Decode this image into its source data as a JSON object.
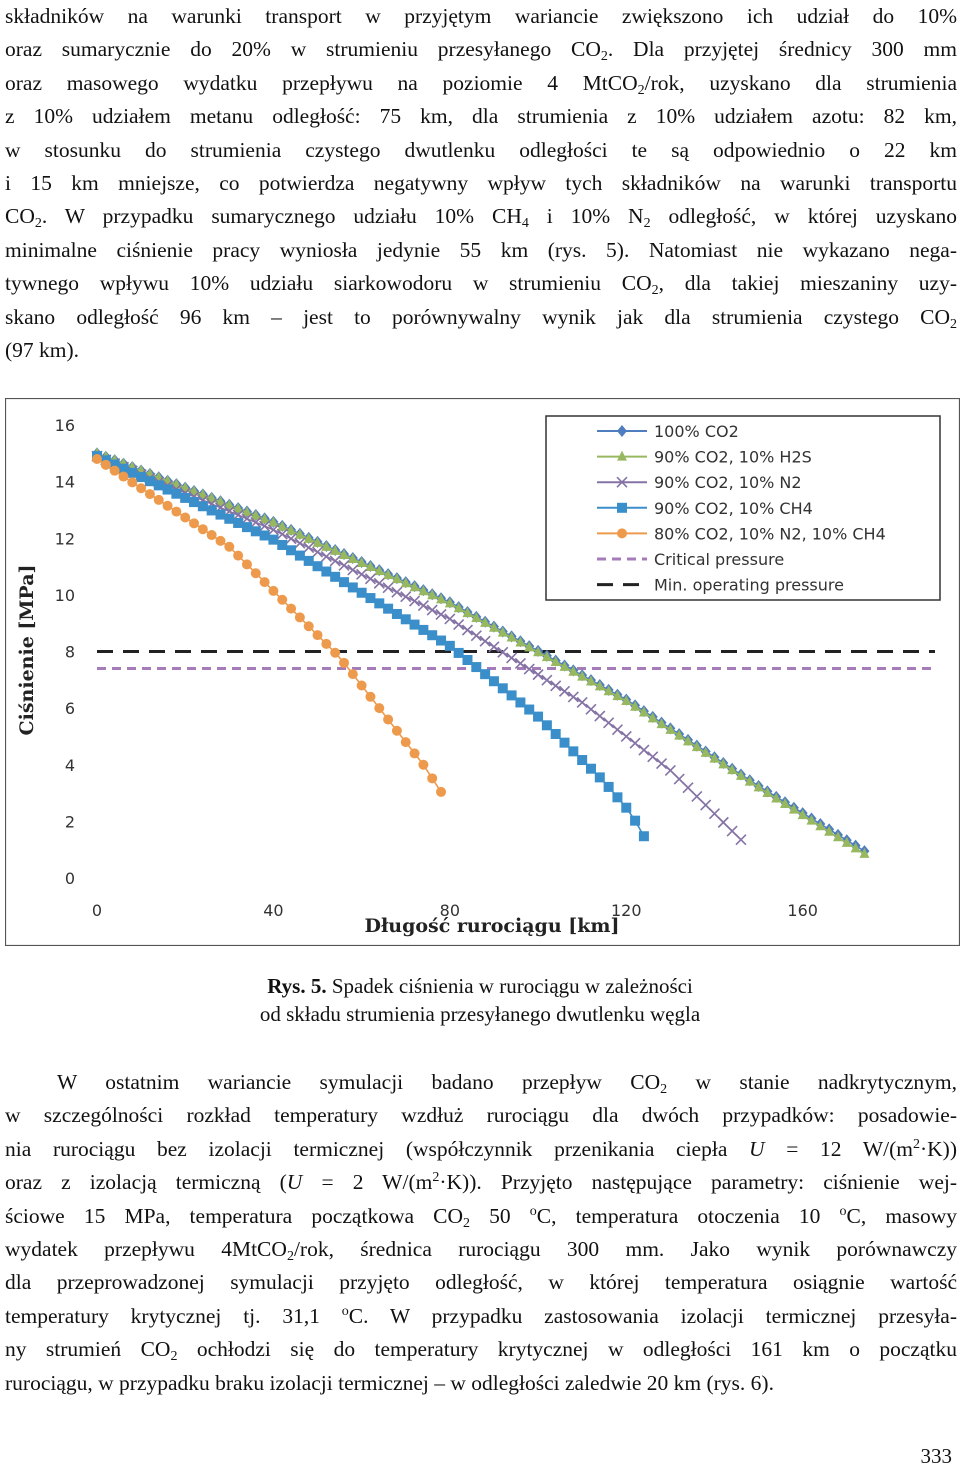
{
  "paragraph1": {
    "lines": [
      {
        "parts": [
          {
            "t": "składników na warunki transport w przyjętym wariancie zwiększono ich udział do 10%"
          }
        ]
      },
      {
        "parts": [
          {
            "t": "oraz sumarycznie do 20% w strumieniu przesyłanego CO"
          },
          {
            "sub": "2"
          },
          {
            "t": ". Dla przyjętej średnicy 300 mm"
          }
        ]
      },
      {
        "parts": [
          {
            "t": "oraz masowego wydatku przepływu na poziomie 4 MtCO"
          },
          {
            "sub": "2"
          },
          {
            "t": "/rok, uzyskano dla strumienia"
          }
        ]
      },
      {
        "parts": [
          {
            "t": "z 10% udziałem metanu odległość: 75 km, dla strumienia z 10% udziałem azotu: 82 km,"
          }
        ]
      },
      {
        "parts": [
          {
            "t": "w stosunku do strumienia czystego dwutlenku odległości te są odpowiednio o 22 km"
          }
        ]
      },
      {
        "parts": [
          {
            "t": "i 15 km mniejsze, co potwierdza negatywny wpływ tych składników na warunki transportu"
          }
        ]
      },
      {
        "parts": [
          {
            "t": "CO"
          },
          {
            "sub": "2"
          },
          {
            "t": ". W przypadku sumarycznego udziału 10% CH"
          },
          {
            "sub": "4"
          },
          {
            "t": " i 10% N"
          },
          {
            "sub": "2"
          },
          {
            "t": " odległość, w której uzyskano"
          }
        ]
      },
      {
        "parts": [
          {
            "t": "minimalne ciśnienie pracy wyniosła jedynie 55 km (rys. 5). Natomiast nie wykazano nega-"
          }
        ]
      },
      {
        "parts": [
          {
            "t": "tywnego wpływu 10% udziału siarkowodoru w strumieniu CO"
          },
          {
            "sub": "2"
          },
          {
            "t": ", dla takiej mieszaniny uzy-"
          }
        ]
      },
      {
        "parts": [
          {
            "t": "skano odległość 96 km – jest to porównywalny wynik jak dla strumienia czystego CO"
          },
          {
            "sub": "2"
          }
        ]
      },
      {
        "parts": [
          {
            "t": "(97 km)."
          }
        ]
      }
    ]
  },
  "chart_data": {
    "type": "line",
    "xlabel": "Długość rurociągu [km]",
    "ylabel": "Ciśnienie [MPa]",
    "xlim": [
      0,
      190
    ],
    "ylim": [
      0,
      16
    ],
    "xticks": [
      0,
      40,
      80,
      120,
      160
    ],
    "yticks": [
      0,
      2,
      4,
      6,
      8,
      10,
      12,
      14,
      16
    ],
    "grid": false,
    "legend_position": "top-right",
    "series": [
      {
        "name": "100% CO2",
        "color": "#4F7EC0",
        "marker": "diamond",
        "dx": 2.0,
        "x_end": 174,
        "x": [
          0,
          40,
          80,
          120,
          150,
          174
        ],
        "y": [
          15.0,
          12.58,
          9.74,
          6.3,
          3.25,
          0.95
        ]
      },
      {
        "name": "90% CO2, 10% H2S",
        "color": "#98B860",
        "marker": "triangle",
        "dx": 2.0,
        "x_end": 174,
        "x": [
          0,
          40,
          80,
          120,
          150,
          174
        ],
        "y": [
          15.0,
          12.55,
          9.7,
          6.25,
          3.2,
          0.85
        ]
      },
      {
        "name": "90% CO2, 10% N2",
        "color": "#8573A5",
        "marker": "x",
        "dx": 2.0,
        "x_end": 147,
        "x": [
          0,
          40,
          80,
          110,
          130,
          147
        ],
        "y": [
          14.9,
          12.3,
          9.15,
          6.2,
          3.8,
          1.2
        ]
      },
      {
        "name": "90% CO2, 10% CH4",
        "color": "#3A8FCA",
        "marker": "square",
        "dx": 2.0,
        "x_end": 125,
        "x": [
          0,
          40,
          80,
          100,
          115,
          121,
          125
        ],
        "y": [
          14.9,
          11.95,
          8.2,
          5.7,
          3.4,
          2.3,
          1.2
        ]
      },
      {
        "name": "80% CO2, 10% N2, 10% CH4",
        "color": "#EE9A4C",
        "marker": "circle",
        "dx": 2.0,
        "x_end": 79,
        "x": [
          0,
          30,
          55,
          68,
          74,
          79
        ],
        "y": [
          14.8,
          11.7,
          7.8,
          5.2,
          4.0,
          2.8
        ]
      }
    ],
    "hlines": [
      {
        "name": "Critical pressure",
        "y": 7.4,
        "color": "#A57BB8",
        "dash": "dashed"
      },
      {
        "name": "Min. operating pressure",
        "y": 8.0,
        "color": "#222222",
        "dash": "long-dashed"
      }
    ]
  },
  "caption": {
    "label": "Rys. 5.",
    "line1": " Spadek ciśnienia w rurociągu w zależności",
    "line2": "od składu strumienia przesyłanego dwutlenku węgla"
  },
  "paragraph2": {
    "lines": [
      {
        "parts": [
          {
            "t": "W ostatnim wariancie symulacji badano przepływ CO"
          },
          {
            "sub": "2"
          },
          {
            "t": " w stanie nadkrytycznym,"
          }
        ]
      },
      {
        "parts": [
          {
            "t": "w szczególności rozkład temperatury wzdłuż rurociągu dla dwóch przypadków: posadowie-"
          }
        ]
      },
      {
        "parts": [
          {
            "t": "nia rurociągu bez izolacji termicznej (współczynnik przenikania ciepła "
          },
          {
            "i": "U"
          },
          {
            "t": " = 12 W/(m"
          },
          {
            "sup": "2"
          },
          {
            "t": "·K))"
          }
        ]
      },
      {
        "parts": [
          {
            "t": "oraz z izolacją termiczną ("
          },
          {
            "i": "U"
          },
          {
            "t": " = 2 W/(m"
          },
          {
            "sup": "2"
          },
          {
            "t": "·K)). Przyjęto następujące parametry: ciśnienie wej-"
          }
        ]
      },
      {
        "parts": [
          {
            "t": "ściowe 15 MPa, temperatura początkowa CO"
          },
          {
            "sub": "2"
          },
          {
            "t": " 50 "
          },
          {
            "sup": "o"
          },
          {
            "t": "C, temperatura otoczenia 10 "
          },
          {
            "sup": "o"
          },
          {
            "t": "C, masowy"
          }
        ]
      },
      {
        "parts": [
          {
            "t": "wydatek przepływu 4MtCO"
          },
          {
            "sub": "2"
          },
          {
            "t": "/rok, średnica rurociągu 300 mm. Jako wynik porównawczy"
          }
        ]
      },
      {
        "parts": [
          {
            "t": "dla przeprowadzonej symulacji przyjęto odległość, w której temperatura osiągnie wartość"
          }
        ]
      },
      {
        "parts": [
          {
            "t": "temperatury krytycznej tj. 31,1 "
          },
          {
            "sup": "o"
          },
          {
            "t": "C. W przypadku zastosowania izolacji termicznej przesyła-"
          }
        ]
      },
      {
        "parts": [
          {
            "t": "ny strumień CO"
          },
          {
            "sub": "2"
          },
          {
            "t": " ochłodzi się do temperatury krytycznej w odległości 161 km o początku"
          }
        ]
      },
      {
        "parts": [
          {
            "t": "rurociągu, w przypadku braku izolacji termicznej – w odległości zaledwie 20 km (rys. 6)."
          }
        ]
      }
    ]
  },
  "page_number": "333"
}
